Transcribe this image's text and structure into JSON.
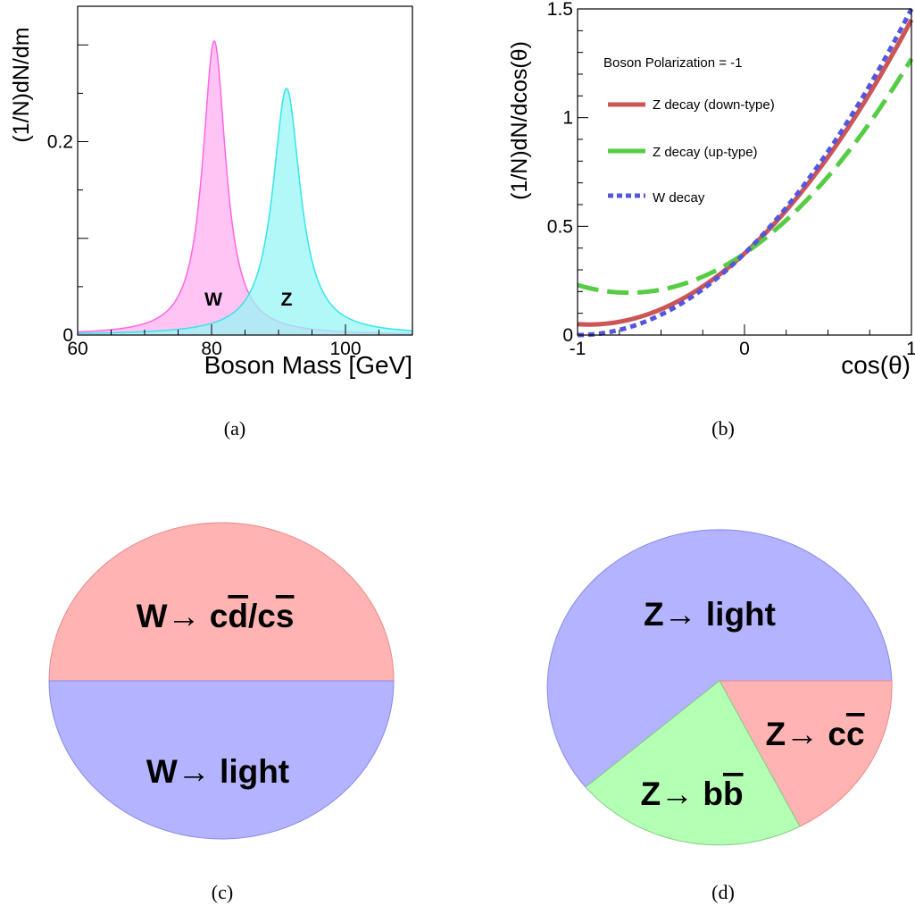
{
  "chart_data": [
    {
      "type": "area",
      "panel_label": "(a)",
      "title": "",
      "xlabel": "Boson Mass [GeV]",
      "ylabel": "(1/N)dN/dm",
      "xlim": [
        60,
        110
      ],
      "ylim": [
        0,
        0.34
      ],
      "xticks": [
        60,
        80,
        100
      ],
      "yticks": [
        0,
        0.2
      ],
      "ytick_labels": [
        "0",
        "0.2"
      ],
      "series": [
        {
          "name": "W",
          "color": "#ff66e0",
          "fill": "#ffb0f0",
          "peak_x": 80.4,
          "peak_y": 0.304,
          "width": 2.1
        },
        {
          "name": "Z",
          "color": "#33e6e6",
          "fill": "#99f5f5",
          "peak_x": 91.2,
          "peak_y": 0.255,
          "width": 2.5
        }
      ],
      "labels": [
        "W",
        "Z"
      ],
      "grid": false
    },
    {
      "type": "line",
      "panel_label": "(b)",
      "title": "",
      "xlabel": "cos(θ)",
      "ylabel": "(1/N)dN/dcos(θ)",
      "xlim": [
        -1,
        1
      ],
      "ylim": [
        0,
        1.5
      ],
      "xticks": [
        -1,
        0,
        1
      ],
      "yticks": [
        0,
        0.5,
        1,
        1.5
      ],
      "ytick_labels": [
        "0",
        "0.5",
        "1",
        "1.5"
      ],
      "legend_title": "Boson Polarization = -1",
      "legend_position": "top-left",
      "series": [
        {
          "name": "Z decay (down-type)",
          "color": "#cc5555",
          "style": "solid",
          "coeffs": [
            0.375,
            0.7,
            0.375
          ]
        },
        {
          "name": "Z decay (up-type)",
          "color": "#55cc44",
          "style": "dashed",
          "coeffs": [
            0.375,
            0.52,
            0.375
          ]
        },
        {
          "name": "W decay",
          "color": "#5555dd",
          "style": "dotted",
          "coeffs": [
            0.375,
            0.75,
            0.375
          ]
        }
      ],
      "grid": false
    },
    {
      "type": "pie",
      "panel_label": "(c)",
      "slices": [
        {
          "label": "W→ cd̄/cs̄",
          "value": 50,
          "color": "#ffb3b3"
        },
        {
          "label": "W→ light",
          "value": 50,
          "color": "#b3b3ff"
        }
      ]
    },
    {
      "type": "pie",
      "panel_label": "(d)",
      "slices": [
        {
          "label": "Z→ light",
          "value": 71,
          "color": "#b3b3ff"
        },
        {
          "label": "Z→ cc̄",
          "value": 12,
          "color": "#ffb3b3"
        },
        {
          "label": "Z→ bb̄",
          "value": 17,
          "color": "#b3ffb3"
        }
      ]
    }
  ],
  "captions": {
    "a": "(a)",
    "b": "(b)",
    "c": "(c)",
    "d": "(d)"
  },
  "text": {
    "c_top_prefix": "W→ ",
    "c_top_q1": "c",
    "c_top_q2": "d",
    "c_top_slash": "/",
    "c_top_q3": "c",
    "c_top_q4": "s",
    "c_bottom": "W→ light",
    "d_light": "Z→ light",
    "d_cc_prefix": "Z→ ",
    "d_cc_q1": "c",
    "d_cc_q2": "c",
    "d_bb_prefix": "Z→ ",
    "d_bb_q1": "b",
    "d_bb_q2": "b"
  }
}
